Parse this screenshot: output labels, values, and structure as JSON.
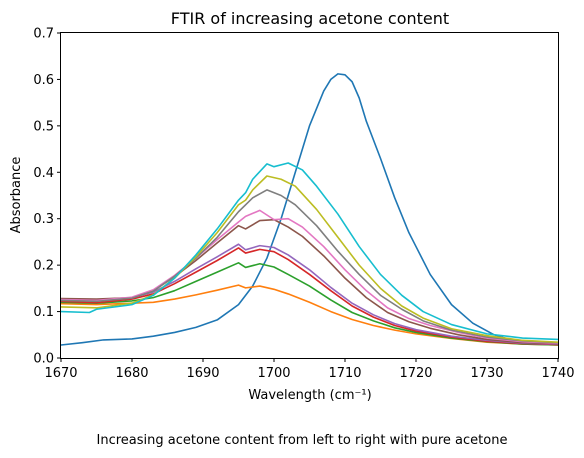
{
  "chart_data": {
    "type": "line",
    "title": "FTIR of increasing acetone content",
    "xlabel": "Wavelength (cm⁻¹)",
    "ylabel": "Absorbance",
    "caption": "Increasing acetone content from left to right with pure acetone",
    "xlim": [
      1670,
      1740
    ],
    "ylim": [
      0.0,
      0.7
    ],
    "x_ticks": [
      1670,
      1680,
      1690,
      1700,
      1710,
      1720,
      1730,
      1740
    ],
    "y_ticks": [
      0.0,
      0.1,
      0.2,
      0.3,
      0.4,
      0.5,
      0.6,
      0.7
    ],
    "x_tick_labels": [
      "1670",
      "1680",
      "1690",
      "1700",
      "1710",
      "1720",
      "1730",
      "1740"
    ],
    "y_tick_labels": [
      "0.0",
      "0.1",
      "0.2",
      "0.3",
      "0.4",
      "0.5",
      "0.6",
      "0.7"
    ],
    "grid": false,
    "legend": "none",
    "series": [
      {
        "color": "#1f77b4",
        "x": [
          1670,
          1673,
          1676,
          1680,
          1683,
          1686,
          1689,
          1692,
          1695,
          1697,
          1699,
          1701,
          1703,
          1705,
          1707,
          1708,
          1709,
          1710,
          1711,
          1712,
          1713,
          1715,
          1717,
          1719,
          1720,
          1722,
          1725,
          1728,
          1731,
          1734,
          1737,
          1740
        ],
        "y": [
          0.028,
          0.033,
          0.039,
          0.041,
          0.047,
          0.055,
          0.066,
          0.082,
          0.115,
          0.155,
          0.215,
          0.3,
          0.4,
          0.5,
          0.575,
          0.6,
          0.612,
          0.61,
          0.595,
          0.56,
          0.51,
          0.43,
          0.345,
          0.27,
          0.24,
          0.18,
          0.115,
          0.075,
          0.05,
          0.036,
          0.032,
          0.03
        ]
      },
      {
        "color": "#ff7f0e",
        "x": [
          1670,
          1675,
          1680,
          1683,
          1686,
          1689,
          1692,
          1695,
          1696,
          1698,
          1700,
          1702,
          1705,
          1708,
          1711,
          1714,
          1717,
          1720,
          1725,
          1730,
          1735,
          1740
        ],
        "y": [
          0.117,
          0.115,
          0.118,
          0.12,
          0.127,
          0.136,
          0.146,
          0.157,
          0.151,
          0.155,
          0.148,
          0.138,
          0.12,
          0.1,
          0.083,
          0.07,
          0.06,
          0.052,
          0.042,
          0.034,
          0.03,
          0.028
        ]
      },
      {
        "color": "#2ca02c",
        "x": [
          1670,
          1675,
          1680,
          1683,
          1686,
          1689,
          1692,
          1695,
          1696,
          1698,
          1700,
          1702,
          1705,
          1708,
          1711,
          1714,
          1717,
          1720,
          1725,
          1730,
          1735,
          1740
        ],
        "y": [
          0.12,
          0.118,
          0.123,
          0.13,
          0.145,
          0.165,
          0.185,
          0.205,
          0.195,
          0.203,
          0.196,
          0.18,
          0.155,
          0.125,
          0.098,
          0.08,
          0.065,
          0.055,
          0.043,
          0.035,
          0.03,
          0.028
        ]
      },
      {
        "color": "#d62728",
        "x": [
          1670,
          1675,
          1680,
          1683,
          1686,
          1689,
          1692,
          1695,
          1696,
          1698,
          1700,
          1702,
          1705,
          1708,
          1711,
          1714,
          1717,
          1720,
          1725,
          1730,
          1735,
          1740
        ],
        "y": [
          0.122,
          0.119,
          0.127,
          0.138,
          0.16,
          0.185,
          0.21,
          0.237,
          0.226,
          0.234,
          0.229,
          0.212,
          0.18,
          0.145,
          0.112,
          0.088,
          0.07,
          0.058,
          0.045,
          0.036,
          0.031,
          0.029
        ]
      },
      {
        "color": "#9467bd",
        "x": [
          1670,
          1675,
          1680,
          1683,
          1686,
          1689,
          1692,
          1695,
          1696,
          1698,
          1700,
          1702,
          1705,
          1708,
          1711,
          1714,
          1717,
          1720,
          1725,
          1730,
          1735,
          1740
        ],
        "y": [
          0.125,
          0.123,
          0.13,
          0.142,
          0.165,
          0.192,
          0.218,
          0.245,
          0.233,
          0.242,
          0.238,
          0.222,
          0.19,
          0.152,
          0.118,
          0.093,
          0.074,
          0.061,
          0.047,
          0.038,
          0.032,
          0.03
        ]
      },
      {
        "color": "#8c564b",
        "x": [
          1670,
          1675,
          1680,
          1683,
          1686,
          1689,
          1692,
          1695,
          1696,
          1698,
          1700,
          1702,
          1704,
          1707,
          1710,
          1713,
          1716,
          1719,
          1722,
          1726,
          1730,
          1735,
          1740
        ],
        "y": [
          0.128,
          0.127,
          0.13,
          0.145,
          0.175,
          0.21,
          0.248,
          0.285,
          0.278,
          0.296,
          0.298,
          0.282,
          0.262,
          0.22,
          0.172,
          0.13,
          0.098,
          0.078,
          0.064,
          0.05,
          0.04,
          0.033,
          0.031
        ]
      },
      {
        "color": "#e377c2",
        "x": [
          1670,
          1675,
          1680,
          1683,
          1686,
          1689,
          1692,
          1695,
          1696,
          1698,
          1700,
          1702,
          1704,
          1707,
          1710,
          1713,
          1716,
          1719,
          1722,
          1726,
          1730,
          1735,
          1740
        ],
        "y": [
          0.126,
          0.124,
          0.131,
          0.147,
          0.178,
          0.215,
          0.255,
          0.293,
          0.305,
          0.318,
          0.298,
          0.3,
          0.282,
          0.24,
          0.19,
          0.145,
          0.108,
          0.085,
          0.07,
          0.055,
          0.043,
          0.035,
          0.032
        ]
      },
      {
        "color": "#7f7f7f",
        "x": [
          1670,
          1675,
          1680,
          1683,
          1686,
          1689,
          1692,
          1695,
          1696,
          1697,
          1699,
          1701,
          1703,
          1706,
          1709,
          1712,
          1715,
          1718,
          1721,
          1725,
          1730,
          1735,
          1740
        ],
        "y": [
          0.124,
          0.122,
          0.129,
          0.144,
          0.176,
          0.215,
          0.26,
          0.315,
          0.33,
          0.345,
          0.362,
          0.35,
          0.33,
          0.285,
          0.23,
          0.18,
          0.135,
          0.105,
          0.08,
          0.06,
          0.045,
          0.037,
          0.033
        ]
      },
      {
        "color": "#bcbd22",
        "x": [
          1670,
          1675,
          1680,
          1683,
          1686,
          1689,
          1692,
          1695,
          1696,
          1697,
          1699,
          1701,
          1703,
          1706,
          1709,
          1712,
          1715,
          1718,
          1721,
          1725,
          1730,
          1735,
          1740
        ],
        "y": [
          0.11,
          0.108,
          0.118,
          0.136,
          0.172,
          0.218,
          0.27,
          0.33,
          0.34,
          0.362,
          0.392,
          0.385,
          0.37,
          0.32,
          0.26,
          0.2,
          0.15,
          0.112,
          0.086,
          0.063,
          0.048,
          0.038,
          0.034
        ]
      },
      {
        "color": "#17becf",
        "x": [
          1670,
          1674,
          1675,
          1680,
          1683,
          1686,
          1689,
          1692,
          1695,
          1696,
          1697,
          1699,
          1700,
          1702,
          1704,
          1706,
          1709,
          1712,
          1715,
          1718,
          1721,
          1725,
          1730,
          1735,
          1740
        ],
        "y": [
          0.1,
          0.098,
          0.105,
          0.115,
          0.135,
          0.172,
          0.222,
          0.278,
          0.34,
          0.356,
          0.385,
          0.418,
          0.412,
          0.42,
          0.405,
          0.37,
          0.31,
          0.24,
          0.18,
          0.135,
          0.1,
          0.072,
          0.052,
          0.043,
          0.04
        ]
      }
    ]
  }
}
